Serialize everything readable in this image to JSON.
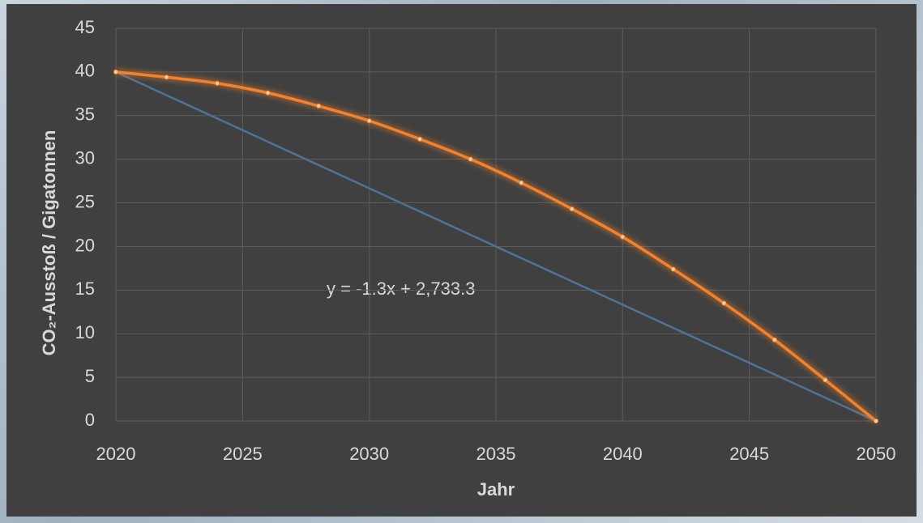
{
  "chart_data": {
    "type": "line",
    "x_label": "Jahr",
    "y_label": "CO₂-Ausstoß / Gigatonnen",
    "annotation": "y = -1.3x + 2,733.3",
    "xlim": [
      2020,
      2050
    ],
    "xticks": [
      2020,
      2025,
      2030,
      2035,
      2040,
      2045,
      2050
    ],
    "ylim": [
      0,
      45
    ],
    "yticks": [
      0,
      5,
      10,
      15,
      20,
      25,
      30,
      35,
      40,
      45
    ],
    "grid": true,
    "series": [
      {
        "color": "#4f7296",
        "smooth": false,
        "x": [
          2020,
          2050
        ],
        "values": [
          40,
          0
        ]
      },
      {
        "color": "#f5822a",
        "smooth": true,
        "x": [
          2020,
          2022,
          2024,
          2026,
          2028,
          2030,
          2032,
          2034,
          2036,
          2038,
          2040,
          2042,
          2044,
          2046,
          2048,
          2050
        ],
        "values": [
          40,
          39.4,
          38.7,
          37.6,
          36.1,
          34.4,
          32.3,
          30.0,
          27.3,
          24.3,
          21.1,
          17.4,
          13.5,
          9.3,
          4.7,
          0
        ]
      }
    ]
  }
}
